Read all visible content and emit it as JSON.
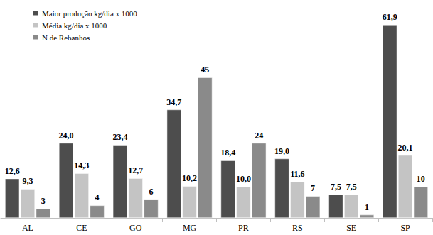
{
  "chart_data": {
    "type": "bar",
    "categories": [
      "AL",
      "CE",
      "GO",
      "MG",
      "PR",
      "RS",
      "SE",
      "SP"
    ],
    "series": [
      {
        "name": "Maior produção kg/dia x 1000",
        "color": "#4d4d4d",
        "values": [
          12.6,
          24.0,
          23.4,
          34.7,
          18.4,
          19.0,
          7.5,
          61.9
        ],
        "value_labels": [
          "12,6",
          "24,0",
          "23,4",
          "34,7",
          "18,4",
          "19,0",
          "7,5",
          "61,9"
        ]
      },
      {
        "name": "Média kg/dia x 1000",
        "color": "#c4c4c4",
        "values": [
          9.3,
          14.3,
          12.7,
          10.2,
          10.0,
          11.6,
          7.5,
          20.1
        ],
        "value_labels": [
          "9,3",
          "14,3",
          "12,7",
          "10,2",
          "10,0",
          "11,6",
          "7,5",
          "20,1"
        ]
      },
      {
        "name": "N de Rebanhos",
        "color": "#8a8a8a",
        "values": [
          3,
          4,
          6,
          45,
          24,
          7,
          1,
          10
        ]
      }
    ],
    "legend": "upper left",
    "data_labels": true,
    "tick_labels": "x",
    "grid": false
  }
}
